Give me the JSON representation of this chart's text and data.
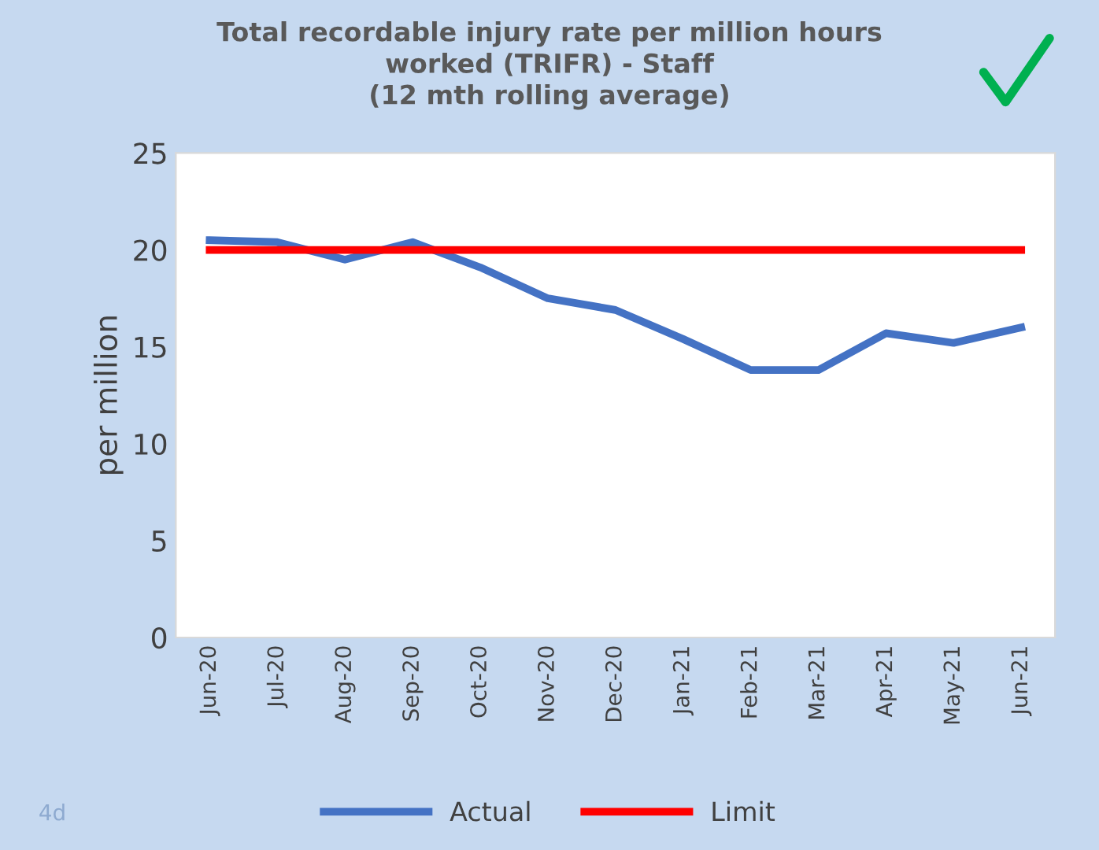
{
  "chart_data": {
    "type": "line",
    "title": "Total recordable injury rate per million hours\nworked (TRIFR) - Staff\n(12 mth rolling average)",
    "ylabel": "per million",
    "categories": [
      "Jun-20",
      "Jul-20",
      "Aug-20",
      "Sep-20",
      "Oct-20",
      "Nov-20",
      "Dec-20",
      "Jan-21",
      "Feb-21",
      "Mar-21",
      "Apr-21",
      "May-21",
      "Jun-21"
    ],
    "series": [
      {
        "name": "Actual",
        "color": "#4472c4",
        "values": [
          20.5,
          20.4,
          19.5,
          20.4,
          19.1,
          17.5,
          16.9,
          15.4,
          13.8,
          13.8,
          15.7,
          15.2,
          16.0
        ]
      },
      {
        "name": "Limit",
        "color": "#ff0000",
        "values": [
          20,
          20,
          20,
          20,
          20,
          20,
          20,
          20,
          20,
          20,
          20,
          20,
          20
        ]
      }
    ],
    "ylim": [
      0,
      25
    ],
    "yticks": [
      0,
      5,
      10,
      15,
      20,
      25
    ],
    "grid": false,
    "legend": "bottom",
    "marker": "none",
    "line_style": "solid",
    "annotations": [
      "4d"
    ]
  }
}
